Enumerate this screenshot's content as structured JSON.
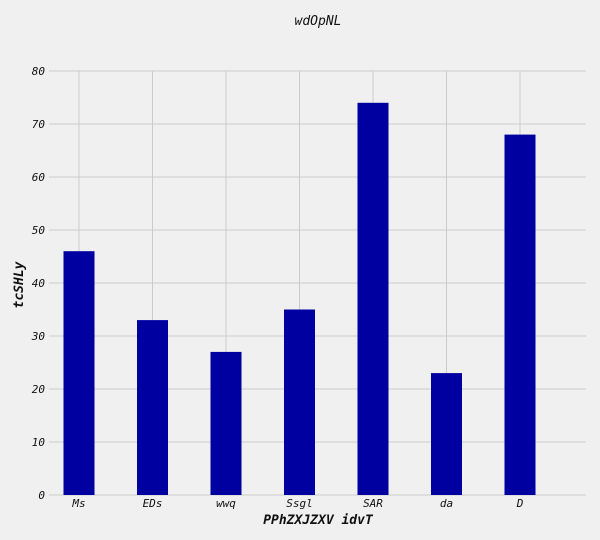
{
  "chart_data": {
    "type": "bar",
    "title": "wdOpNL",
    "xlabel": "PPhZXJZXV idvT",
    "ylabel": "tcSHLy",
    "categories": [
      "Ms",
      "EDs",
      "wwq",
      "Ssgl",
      "SAR",
      "da",
      "D"
    ],
    "values": [
      46,
      33,
      27,
      35,
      74,
      23,
      68
    ],
    "ylim": [
      0,
      80
    ],
    "yticks": [
      0,
      10,
      20,
      30,
      40,
      50,
      60,
      70,
      80
    ],
    "grid": true,
    "legend": "none",
    "colors": {
      "bar": "#0000a0",
      "grid": "#cbcbcb",
      "background": "#f0f0f0",
      "text": "#111111"
    }
  }
}
